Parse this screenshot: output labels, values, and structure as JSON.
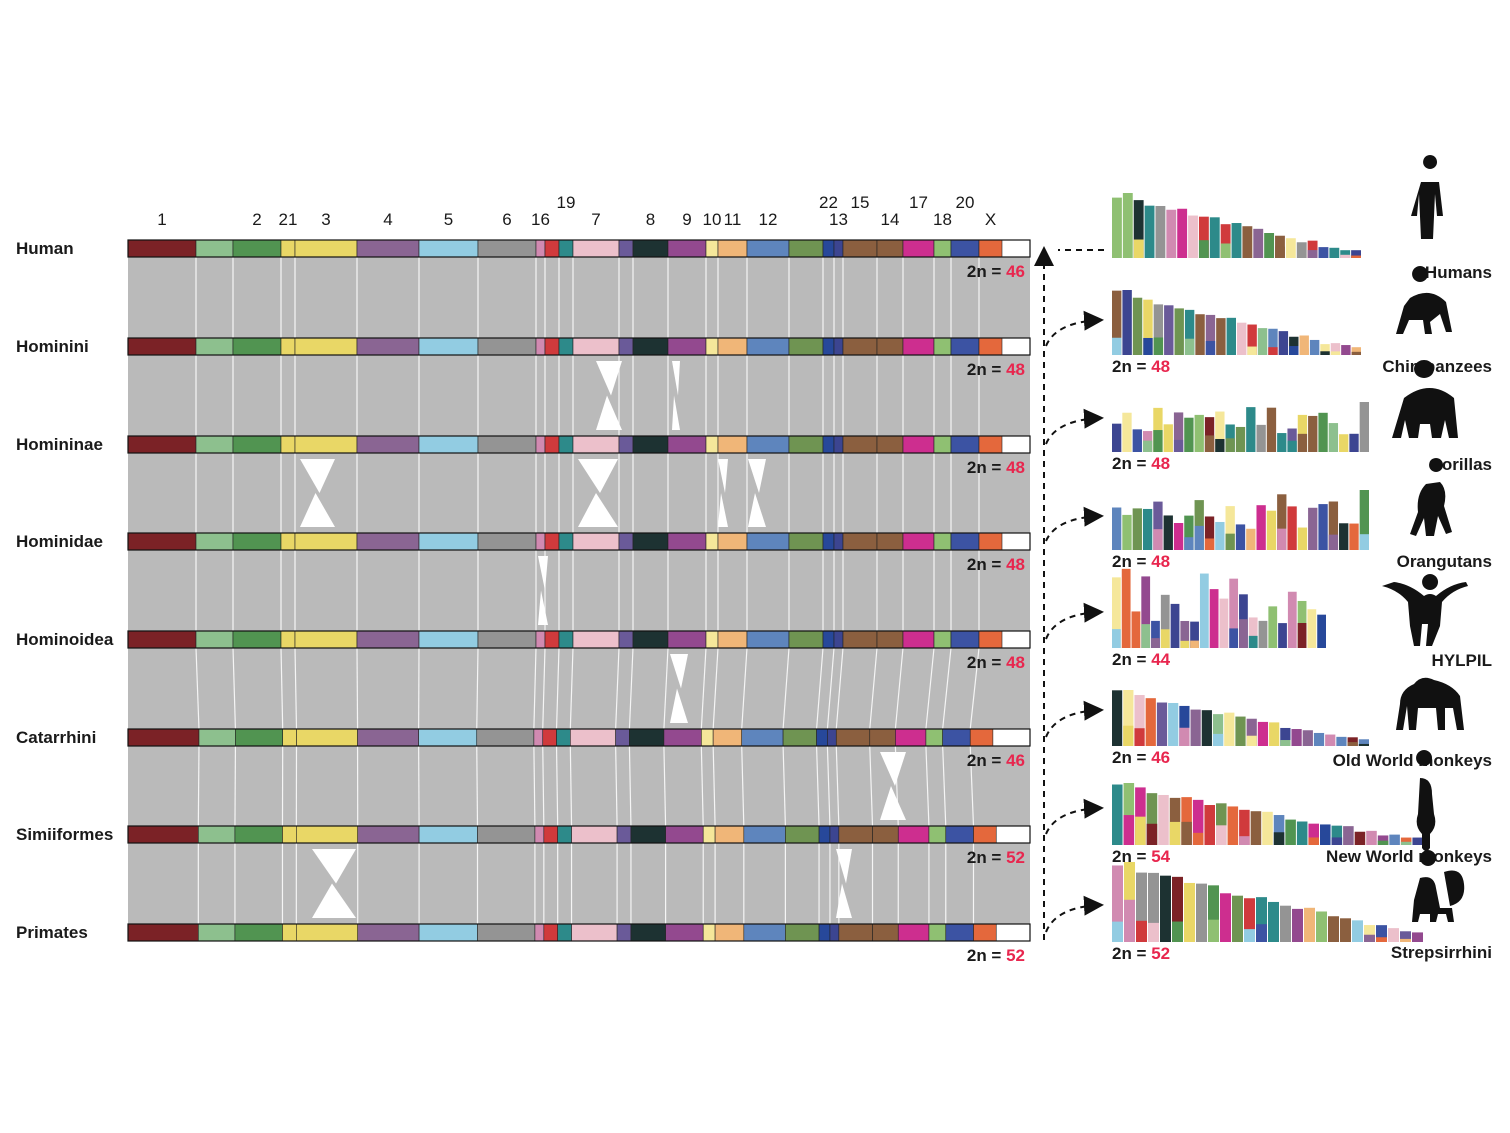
{
  "chromosome_labels": [
    {
      "label": "1",
      "col": 0,
      "row": "low"
    },
    {
      "label": "2",
      "col": 2,
      "row": "low"
    },
    {
      "label": "21",
      "col": 3,
      "row": "low"
    },
    {
      "label": "3",
      "col": 4,
      "row": "low"
    },
    {
      "label": "4",
      "col": 5,
      "row": "low"
    },
    {
      "label": "5",
      "col": 6,
      "row": "low"
    },
    {
      "label": "6",
      "col": 7,
      "row": "low"
    },
    {
      "label": "16",
      "col": 8,
      "row": "low"
    },
    {
      "label": "19",
      "col": 10,
      "row": "high"
    },
    {
      "label": "7",
      "col": 11,
      "row": "low"
    },
    {
      "label": "8",
      "col": 13,
      "row": "low"
    },
    {
      "label": "9",
      "col": 14,
      "row": "low"
    },
    {
      "label": "10",
      "col": 15,
      "row": "low"
    },
    {
      "label": "11",
      "col": 16,
      "row": "low"
    },
    {
      "label": "12",
      "col": 17,
      "row": "low"
    },
    {
      "label": "22",
      "col": 19,
      "row": "high"
    },
    {
      "label": "13",
      "col": 20,
      "row": "low"
    },
    {
      "label": "15",
      "col": 21,
      "row": "high"
    },
    {
      "label": "14",
      "col": 22,
      "row": "low"
    },
    {
      "label": "17",
      "col": 23,
      "row": "high"
    },
    {
      "label": "18",
      "col": 24,
      "row": "low"
    },
    {
      "label": "20",
      "col": 25,
      "row": "high"
    },
    {
      "label": "X",
      "col": 26,
      "row": "low"
    }
  ],
  "palette": [
    "#7b2226",
    "#8dc08e",
    "#519451",
    "#e9d766",
    "#e9d766",
    "#8a6593",
    "#92cce2",
    "#949494",
    "#d18ab1",
    "#d03a3c",
    "#2d8a8a",
    "#ecc0cb",
    "#6a5a99",
    "#1d3232",
    "#93498f",
    "#f5e79a",
    "#f0b678",
    "#5e85bd",
    "#6f9452",
    "#27489a",
    "#3c4591",
    "#8b5f3f",
    "#8b5f3f",
    "#cd2e8f",
    "#8fc072",
    "#3c53a3",
    "#e4683c"
  ],
  "lineages": [
    {
      "name": "Human",
      "diploid_prefix": "2n = ",
      "diploid": "46"
    },
    {
      "name": "Hominini",
      "diploid_prefix": "2n = ",
      "diploid": "48"
    },
    {
      "name": "Homininae",
      "diploid_prefix": "2n = ",
      "diploid": "48"
    },
    {
      "name": "Hominidae",
      "diploid_prefix": "2n = ",
      "diploid": "48"
    },
    {
      "name": "Hominoidea",
      "diploid_prefix": "2n = ",
      "diploid": "48"
    },
    {
      "name": "Catarrhini",
      "diploid_prefix": "2n = ",
      "diploid": "46"
    },
    {
      "name": "Simiiformes",
      "diploid_prefix": "2n = ",
      "diploid": "52"
    },
    {
      "name": "Primates",
      "diploid_prefix": "2n = ",
      "diploid": "52"
    }
  ],
  "species": [
    {
      "name": "Humans",
      "diploid_prefix": "2n = ",
      "diploid": "",
      "silhouette": "human-silhouette-icon"
    },
    {
      "name": "Chimpanzees",
      "diploid_prefix": "2n = ",
      "diploid": "48",
      "silhouette": "chimpanzee-silhouette-icon"
    },
    {
      "name": "Gorillas",
      "diploid_prefix": "2n = ",
      "diploid": "48",
      "silhouette": "gorilla-silhouette-icon"
    },
    {
      "name": "Orangutans",
      "diploid_prefix": "2n = ",
      "diploid": "48",
      "silhouette": "orangutan-silhouette-icon"
    },
    {
      "name": "HYLPIL",
      "diploid_prefix": "2n = ",
      "diploid": "44",
      "silhouette": "gibbon-silhouette-icon"
    },
    {
      "name": "Old World monkeys",
      "diploid_prefix": "2n = ",
      "diploid": "46",
      "silhouette": "old-world-monkey-silhouette-icon"
    },
    {
      "name": "New World monkeys",
      "diploid_prefix": "2n = ",
      "diploid": "54",
      "silhouette": "new-world-monkey-silhouette-icon"
    },
    {
      "name": "Strepsirrhini",
      "diploid_prefix": "2n = ",
      "diploid": "52",
      "silhouette": "lemur-silhouette-icon"
    }
  ],
  "colors": {
    "synteny": "#bababa",
    "diploid_number": "#e8264e",
    "label_text": "#1a1a1a"
  }
}
